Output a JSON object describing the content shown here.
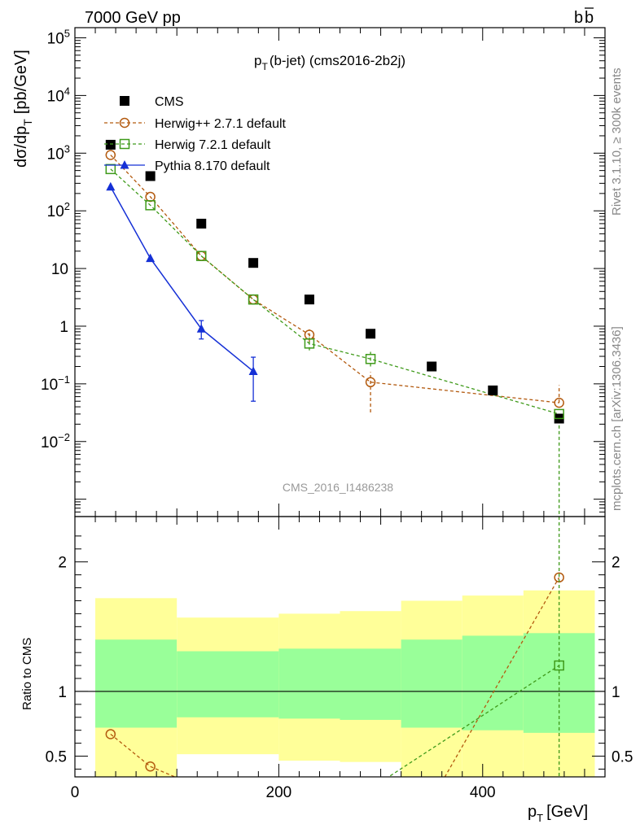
{
  "header": {
    "left": "7000 GeV pp",
    "right_main": "b",
    "right_bar": "b"
  },
  "main_panel": {
    "title": "p",
    "title_sub": "T",
    "title_rest": "(b-jet) (cms2016-2b2j)",
    "ylabel": "dσ/dp",
    "ylabel_sub": "T",
    "ylabel_units": "[pb/GeV]",
    "watermark": "CMS_2016_I1486238",
    "yticks": [
      {
        "value": 100000,
        "base": "10",
        "exp": "5"
      },
      {
        "value": 10000,
        "base": "10",
        "exp": "4"
      },
      {
        "value": 1000,
        "base": "10",
        "exp": "3"
      },
      {
        "value": 100,
        "base": "10",
        "exp": "2"
      },
      {
        "value": 10,
        "base": "10",
        "exp": ""
      },
      {
        "value": 1,
        "base": "1",
        "exp": ""
      },
      {
        "value": 0.1,
        "base": "10",
        "exp": "−1"
      },
      {
        "value": 0.01,
        "base": "10",
        "exp": "−2"
      }
    ]
  },
  "side_labels": {
    "rivet": "Rivet 3.1.10, ≥ 300k events",
    "url": "mcplots.cern.ch [arXiv:1306.3436]"
  },
  "ratio_panel": {
    "ylabel": "Ratio to CMS",
    "yticks": [
      {
        "value": 0.5,
        "label": "0.5"
      },
      {
        "value": 1,
        "label": "1"
      },
      {
        "value": 2,
        "label": "2"
      }
    ]
  },
  "x_axis": {
    "label": "p",
    "label_sub": "T",
    "label_units": "[GeV]",
    "ticks": [
      {
        "value": 0,
        "label": "0"
      },
      {
        "value": 200,
        "label": "200"
      },
      {
        "value": 400,
        "label": "400"
      }
    ]
  },
  "colors": {
    "data": "#000000",
    "herwigpp": "#b35a0f",
    "herwig7": "#3f9a1a",
    "pythia": "#1530d6",
    "band_green": "#99ff99",
    "band_yellow": "#ffff99",
    "watermark": "#999999",
    "side_text": "#888888"
  },
  "chart_data": {
    "type": "scatter",
    "title": "pT(b-jet) (cms2016-2b2j)",
    "xlabel": "pT [GeV]",
    "ylabel": "dσ/dpT [pb/GeV]",
    "xlim": [
      0,
      520
    ],
    "ylim": [
      0.0005,
      150000
    ],
    "yscale": "log",
    "ratio_ylim": [
      0.34,
      2.35
    ],
    "ratio_ylabel": "Ratio to CMS",
    "legend_position": "top-left",
    "series": [
      {
        "name": "CMS",
        "key": "data",
        "style": "square",
        "x": [
          35,
          74,
          124,
          175,
          230,
          290,
          350,
          410,
          475
        ],
        "y": [
          1400,
          400,
          60,
          12.5,
          2.9,
          0.74,
          0.2,
          0.077,
          0.025
        ]
      },
      {
        "name": "Herwig++ 2.7.1 default",
        "key": "herwigpp",
        "style": "circle-dashed",
        "x": [
          35,
          74,
          124,
          175,
          230,
          290,
          475
        ],
        "y": [
          930,
          175,
          16.5,
          2.9,
          0.71,
          0.107,
          0.047
        ],
        "err_lo": [
          null,
          null,
          null,
          null,
          0.53,
          0.032,
          null
        ],
        "err_hi": [
          null,
          null,
          null,
          null,
          0.88,
          0.16,
          0.095
        ]
      },
      {
        "name": "Herwig 7.2.1 default",
        "key": "herwig7",
        "style": "square-dashed",
        "x": [
          35,
          74,
          124,
          175,
          230,
          290,
          475
        ],
        "y": [
          530,
          125,
          16.5,
          2.9,
          0.5,
          0.27,
          0.03
        ],
        "err_lo": [
          null,
          null,
          null,
          null,
          0.38,
          0.2,
          null
        ],
        "err_hi": [
          null,
          null,
          null,
          null,
          0.64,
          0.36,
          null
        ]
      },
      {
        "name": "Pythia 8.170 default",
        "key": "pythia",
        "style": "triangle-solid",
        "x": [
          35,
          74,
          124,
          175
        ],
        "y": [
          260,
          15,
          0.9,
          0.165
        ],
        "err_lo": [
          null,
          null,
          0.6,
          0.05
        ],
        "err_hi": [
          null,
          null,
          1.25,
          0.29
        ]
      }
    ],
    "ratio_bands": [
      {
        "x0": 20,
        "x1": 100,
        "green_lo": 0.72,
        "green_hi": 1.4,
        "yellow_lo": 0.34,
        "yellow_hi": 1.72
      },
      {
        "x0": 100,
        "x1": 200,
        "green_lo": 0.8,
        "green_hi": 1.31,
        "yellow_lo": 0.515,
        "yellow_hi": 1.57
      },
      {
        "x0": 200,
        "x1": 260,
        "green_lo": 0.79,
        "green_hi": 1.33,
        "yellow_lo": 0.465,
        "yellow_hi": 1.6
      },
      {
        "x0": 260,
        "x1": 320,
        "green_lo": 0.78,
        "green_hi": 1.33,
        "yellow_lo": 0.455,
        "yellow_hi": 1.62
      },
      {
        "x0": 320,
        "x1": 380,
        "green_lo": 0.72,
        "green_hi": 1.4,
        "yellow_lo": 0.34,
        "yellow_hi": 1.7
      },
      {
        "x0": 380,
        "x1": 440,
        "green_lo": 0.7,
        "green_hi": 1.43,
        "yellow_lo": 0.34,
        "yellow_hi": 1.74
      },
      {
        "x0": 440,
        "x1": 510,
        "green_lo": 0.68,
        "green_hi": 1.45,
        "yellow_lo": 0.34,
        "yellow_hi": 1.78
      }
    ],
    "ratio_series": [
      {
        "key": "herwigpp",
        "x": [
          35,
          74,
          110
        ],
        "y": [
          0.67,
          0.42,
          0.3
        ],
        "markers": [
          true,
          true,
          false
        ],
        "x2": [
          360,
          475
        ],
        "y2": [
          0.3,
          1.88
        ],
        "markers2": [
          false,
          true
        ]
      },
      {
        "key": "herwig7",
        "x": [
          300,
          475
        ],
        "y": [
          0.3,
          1.2
        ],
        "markers": [
          false,
          true
        ]
      }
    ]
  }
}
